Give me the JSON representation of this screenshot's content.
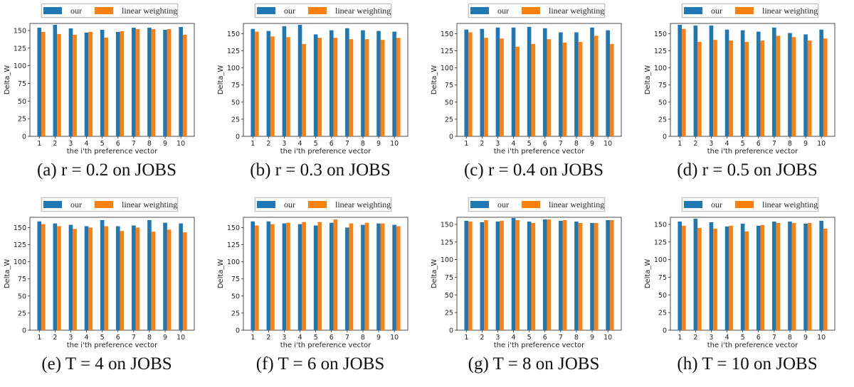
{
  "colors": {
    "our": "#1f77b4",
    "linear": "#ff7f0e"
  },
  "legend": {
    "our": "our",
    "linear": "linear weighting"
  },
  "chart_data": [
    {
      "type": "bar",
      "caption": "(a) r = 0.2 on JOBS",
      "categories": [
        "1",
        "2",
        "3",
        "4",
        "5",
        "6",
        "7",
        "8",
        "9",
        "10"
      ],
      "series": [
        {
          "name": "our",
          "values": [
            154,
            158,
            153,
            147,
            151,
            148,
            154,
            154,
            151,
            155
          ]
        },
        {
          "name": "linear weighting",
          "values": [
            148,
            145,
            144,
            148,
            140,
            149,
            152,
            152,
            152,
            144
          ]
        }
      ],
      "xlabel": "the i'th preference vector",
      "ylabel": "Delta_W",
      "ylim": [
        0,
        160
      ],
      "yticks": [
        0,
        25,
        50,
        75,
        100,
        125,
        150
      ],
      "legend_position": "top"
    },
    {
      "type": "bar",
      "caption": "(b) r = 0.3 on JOBS",
      "categories": [
        "1",
        "2",
        "3",
        "4",
        "5",
        "6",
        "7",
        "8",
        "9",
        "10"
      ],
      "series": [
        {
          "name": "our",
          "values": [
            157,
            154,
            161,
            163,
            149,
            155,
            158,
            155,
            154,
            153
          ]
        },
        {
          "name": "linear weighting",
          "values": [
            153,
            146,
            145,
            135,
            144,
            144,
            142,
            142,
            141,
            144
          ]
        }
      ],
      "xlabel": "the i'th preference vector",
      "ylabel": "Delta_W",
      "ylim": [
        0,
        165
      ],
      "yticks": [
        0,
        25,
        50,
        75,
        100,
        125,
        150
      ],
      "legend_position": "top"
    },
    {
      "type": "bar",
      "caption": "(c) r = 0.4 on JOBS",
      "categories": [
        "1",
        "2",
        "3",
        "4",
        "5",
        "6",
        "7",
        "8",
        "9",
        "10"
      ],
      "series": [
        {
          "name": "our",
          "values": [
            156,
            157,
            159,
            159,
            160,
            158,
            152,
            152,
            159,
            155
          ]
        },
        {
          "name": "linear weighting",
          "values": [
            152,
            144,
            143,
            131,
            135,
            142,
            137,
            138,
            147,
            135
          ]
        }
      ],
      "xlabel": "the i'th preference vector",
      "ylabel": "Delta_W",
      "ylim": [
        0,
        165
      ],
      "yticks": [
        0,
        25,
        50,
        75,
        100,
        125,
        150
      ],
      "legend_position": "top"
    },
    {
      "type": "bar",
      "caption": "(d) r = 0.5 on JOBS",
      "categories": [
        "1",
        "2",
        "3",
        "4",
        "5",
        "6",
        "7",
        "8",
        "9",
        "10"
      ],
      "series": [
        {
          "name": "our",
          "values": [
            163,
            162,
            162,
            156,
            155,
            153,
            159,
            151,
            149,
            156
          ]
        },
        {
          "name": "linear weighting",
          "values": [
            157,
            138,
            141,
            140,
            138,
            140,
            147,
            145,
            140,
            143
          ]
        }
      ],
      "xlabel": "the i'th preference vector",
      "ylabel": "Delta_W",
      "ylim": [
        0,
        165
      ],
      "yticks": [
        0,
        25,
        50,
        75,
        100,
        125,
        150
      ],
      "legend_position": "top"
    },
    {
      "type": "bar",
      "caption": "(e) T = 4 on JOBS",
      "categories": [
        "1",
        "2",
        "3",
        "4",
        "5",
        "6",
        "7",
        "8",
        "9",
        "10"
      ],
      "series": [
        {
          "name": "our",
          "values": [
            159,
            156,
            154,
            152,
            161,
            152,
            153,
            161,
            157,
            156
          ]
        },
        {
          "name": "linear weighting",
          "values": [
            155,
            152,
            148,
            150,
            152,
            145,
            150,
            144,
            147,
            143
          ]
        }
      ],
      "xlabel": "the i'th preference vector",
      "ylabel": "Delta_W",
      "ylim": [
        0,
        165
      ],
      "yticks": [
        0,
        25,
        50,
        75,
        100,
        125,
        150
      ],
      "legend_position": "top"
    },
    {
      "type": "bar",
      "caption": "(f) T = 6 on JOBS",
      "categories": [
        "1",
        "2",
        "3",
        "4",
        "5",
        "6",
        "7",
        "8",
        "9",
        "10"
      ],
      "series": [
        {
          "name": "our",
          "values": [
            159,
            159,
            156,
            155,
            153,
            157,
            150,
            154,
            156,
            154
          ]
        },
        {
          "name": "linear weighting",
          "values": [
            153,
            155,
            157,
            158,
            158,
            162,
            156,
            157,
            156,
            152
          ]
        }
      ],
      "xlabel": "the i'th preference vector",
      "ylabel": "Delta_W",
      "ylim": [
        0,
        165
      ],
      "yticks": [
        0,
        25,
        50,
        75,
        100,
        125,
        150
      ],
      "legend_position": "top"
    },
    {
      "type": "bar",
      "caption": "(g) T = 8 on JOBS",
      "categories": [
        "1",
        "2",
        "3",
        "4",
        "5",
        "6",
        "7",
        "8",
        "9",
        "10"
      ],
      "series": [
        {
          "name": "our",
          "values": [
            155,
            153,
            154,
            159,
            154,
            157,
            155,
            154,
            152,
            156
          ]
        },
        {
          "name": "linear weighting",
          "values": [
            154,
            156,
            155,
            156,
            152,
            157,
            156,
            152,
            152,
            156
          ]
        }
      ],
      "xlabel": "the i'th preference vector",
      "ylabel": "Delta_W",
      "ylim": [
        0,
        160
      ],
      "yticks": [
        0,
        25,
        50,
        75,
        100,
        125,
        150
      ],
      "legend_position": "top"
    },
    {
      "type": "bar",
      "caption": "(h) T = 10 on JOBS",
      "categories": [
        "1",
        "2",
        "3",
        "4",
        "5",
        "6",
        "7",
        "8",
        "9",
        "10"
      ],
      "series": [
        {
          "name": "our",
          "values": [
            154,
            158,
            153,
            147,
            151,
            148,
            154,
            154,
            151,
            155
          ]
        },
        {
          "name": "linear weighting",
          "values": [
            148,
            145,
            144,
            148,
            140,
            149,
            152,
            152,
            152,
            144
          ]
        }
      ],
      "xlabel": "the i'th preference vector",
      "ylabel": "Delta_W",
      "ylim": [
        0,
        160
      ],
      "yticks": [
        0,
        25,
        50,
        75,
        100,
        125,
        150
      ],
      "legend_position": "top"
    }
  ]
}
